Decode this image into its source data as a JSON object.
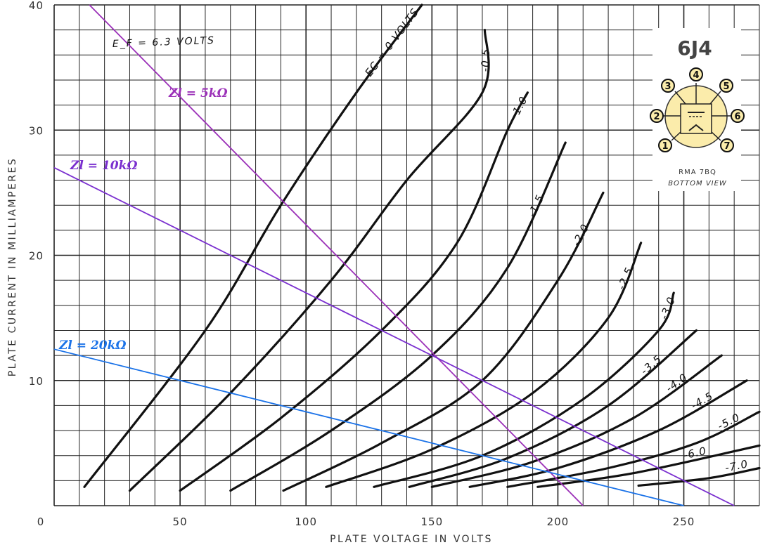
{
  "chart_data": {
    "type": "line",
    "title": "",
    "xlabel": "PLATE VOLTAGE IN VOLTS",
    "ylabel": "PLATE CURRENT IN MILLIAMPERES",
    "xlim": [
      0,
      280
    ],
    "ylim": [
      0,
      40
    ],
    "x_tick_labels": [
      "0",
      "50",
      "100",
      "150",
      "200",
      "250"
    ],
    "y_tick_labels": [
      "10",
      "20",
      "30",
      "40"
    ],
    "filament_label": "E_F = 6.3 VOLTS",
    "grid": true,
    "tube": {
      "name": "6J4",
      "base": "RMA 7BQ",
      "view": "BOTTOM VIEW",
      "pins": [
        "1",
        "2",
        "3",
        "4",
        "5",
        "6",
        "7"
      ]
    },
    "series": [
      {
        "name": "EC = 0 VOLTS",
        "points": [
          [
            12,
            1.5
          ],
          [
            60,
            14
          ],
          [
            90,
            24
          ],
          [
            120,
            33
          ],
          [
            146,
            40
          ]
        ]
      },
      {
        "name": "-0.5",
        "points": [
          [
            30,
            1.2
          ],
          [
            70,
            9
          ],
          [
            110,
            18
          ],
          [
            140,
            26
          ],
          [
            170,
            33
          ],
          [
            171,
            38
          ]
        ]
      },
      {
        "name": "-1.0",
        "points": [
          [
            50,
            1.2
          ],
          [
            90,
            7
          ],
          [
            130,
            14
          ],
          [
            160,
            21
          ],
          [
            180,
            30
          ],
          [
            188,
            33
          ]
        ]
      },
      {
        "name": "-1.5",
        "points": [
          [
            70,
            1.2
          ],
          [
            110,
            6
          ],
          [
            150,
            12
          ],
          [
            180,
            19
          ],
          [
            203,
            29
          ]
        ]
      },
      {
        "name": "-2.0",
        "points": [
          [
            91,
            1.2
          ],
          [
            130,
            5
          ],
          [
            170,
            10
          ],
          [
            200,
            18
          ],
          [
            218,
            25
          ]
        ]
      },
      {
        "name": "-2.5",
        "points": [
          [
            108,
            1.5
          ],
          [
            150,
            4.5
          ],
          [
            190,
            9
          ],
          [
            220,
            15
          ],
          [
            233,
            21
          ]
        ]
      },
      {
        "name": "-3.0",
        "points": [
          [
            127,
            1.5
          ],
          [
            170,
            4
          ],
          [
            210,
            8.5
          ],
          [
            240,
            14
          ],
          [
            246,
            17
          ]
        ]
      },
      {
        "name": "-3.5",
        "points": [
          [
            141,
            1.5
          ],
          [
            180,
            3.8
          ],
          [
            220,
            8
          ],
          [
            255,
            14
          ]
        ]
      },
      {
        "name": "-4.0",
        "points": [
          [
            150,
            1.5
          ],
          [
            190,
            3.5
          ],
          [
            230,
            7
          ],
          [
            265,
            12
          ]
        ]
      },
      {
        "name": "-4.5",
        "points": [
          [
            165,
            1.5
          ],
          [
            200,
            3
          ],
          [
            240,
            6
          ],
          [
            275,
            10
          ]
        ]
      },
      {
        "name": "-5.0",
        "points": [
          [
            180,
            1.5
          ],
          [
            220,
            3
          ],
          [
            255,
            5
          ],
          [
            280,
            7.5
          ]
        ]
      },
      {
        "name": "-6.0",
        "points": [
          [
            192,
            1.5
          ],
          [
            230,
            2.6
          ],
          [
            280,
            4.8
          ]
        ]
      },
      {
        "name": "-7.0",
        "points": [
          [
            232,
            1.6
          ],
          [
            260,
            2.2
          ],
          [
            280,
            3
          ]
        ]
      }
    ],
    "load_lines": [
      {
        "name": "Zl = 5kΩ",
        "color": "#9b30b8",
        "points": [
          [
            14,
            40
          ],
          [
            210,
            0
          ]
        ]
      },
      {
        "name": "Zl = 10kΩ",
        "color": "#7a2fcf",
        "points": [
          [
            0,
            27
          ],
          [
            270,
            0
          ]
        ]
      },
      {
        "name": "Zl = 20kΩ",
        "color": "#1a72e8",
        "points": [
          [
            0,
            12.5
          ],
          [
            250,
            0
          ]
        ]
      }
    ]
  }
}
